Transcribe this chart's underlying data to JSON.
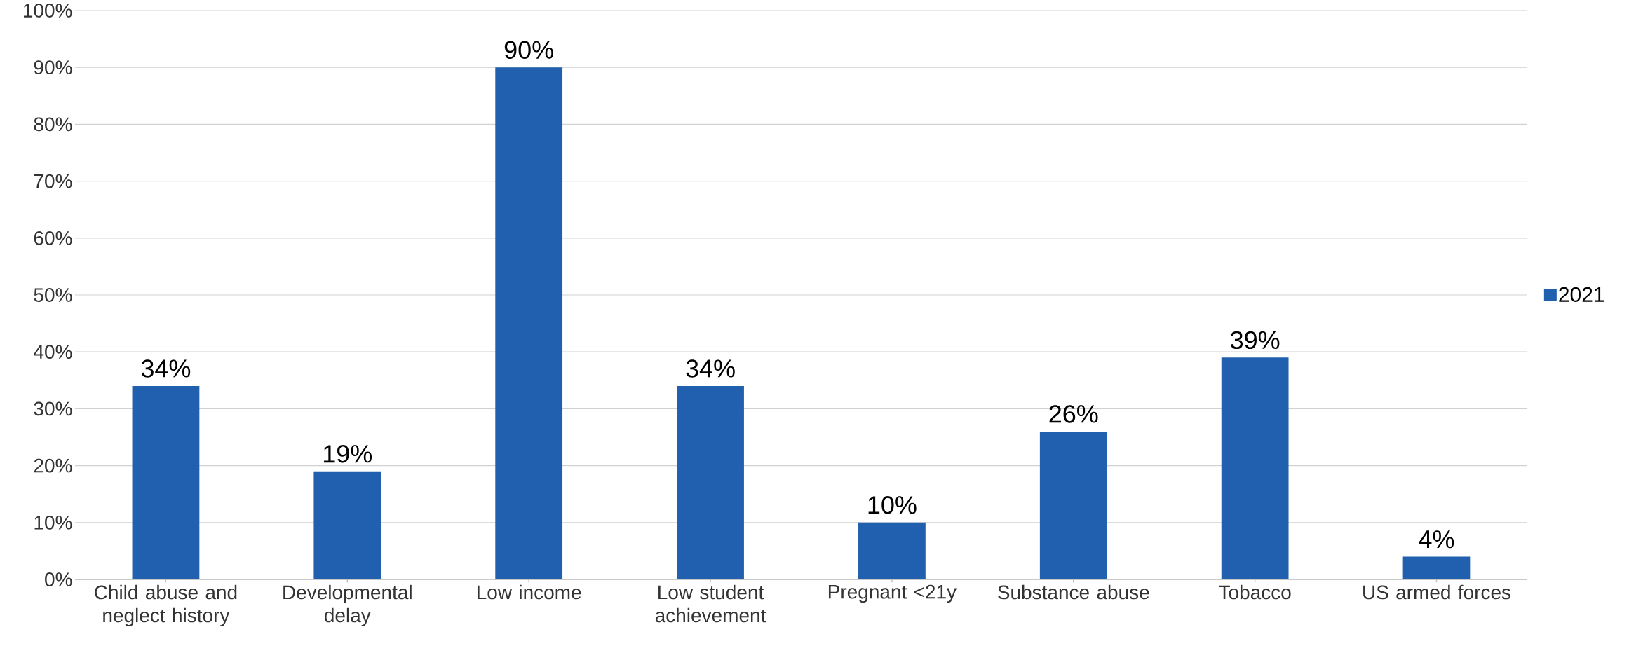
{
  "chart_data": {
    "type": "bar",
    "categories": [
      "Child abuse and neglect history",
      "Developmental delay",
      "Low income",
      "Low student achievement",
      "Pregnant <21y",
      "Substance abuse",
      "Tobacco",
      "US armed forces"
    ],
    "series": [
      {
        "name": "2021",
        "color": "#2060ae",
        "values": [
          34,
          19,
          90,
          34,
          10,
          26,
          39,
          4
        ],
        "value_labels": [
          "34%",
          "19%",
          "90%",
          "34%",
          "10%",
          "26%",
          "39%",
          "4%"
        ]
      }
    ],
    "ylim": [
      0,
      100
    ],
    "yticks": [
      {
        "value": 0,
        "label": "0%"
      },
      {
        "value": 10,
        "label": "10%"
      },
      {
        "value": 20,
        "label": "20%"
      },
      {
        "value": 30,
        "label": "30%"
      },
      {
        "value": 40,
        "label": "40%"
      },
      {
        "value": 50,
        "label": "50%"
      },
      {
        "value": 60,
        "label": "60%"
      },
      {
        "value": 70,
        "label": "70%"
      },
      {
        "value": 80,
        "label": "80%"
      },
      {
        "value": 90,
        "label": "90%"
      },
      {
        "value": 100,
        "label": "100%"
      }
    ],
    "grid": "y",
    "legend": "right"
  }
}
